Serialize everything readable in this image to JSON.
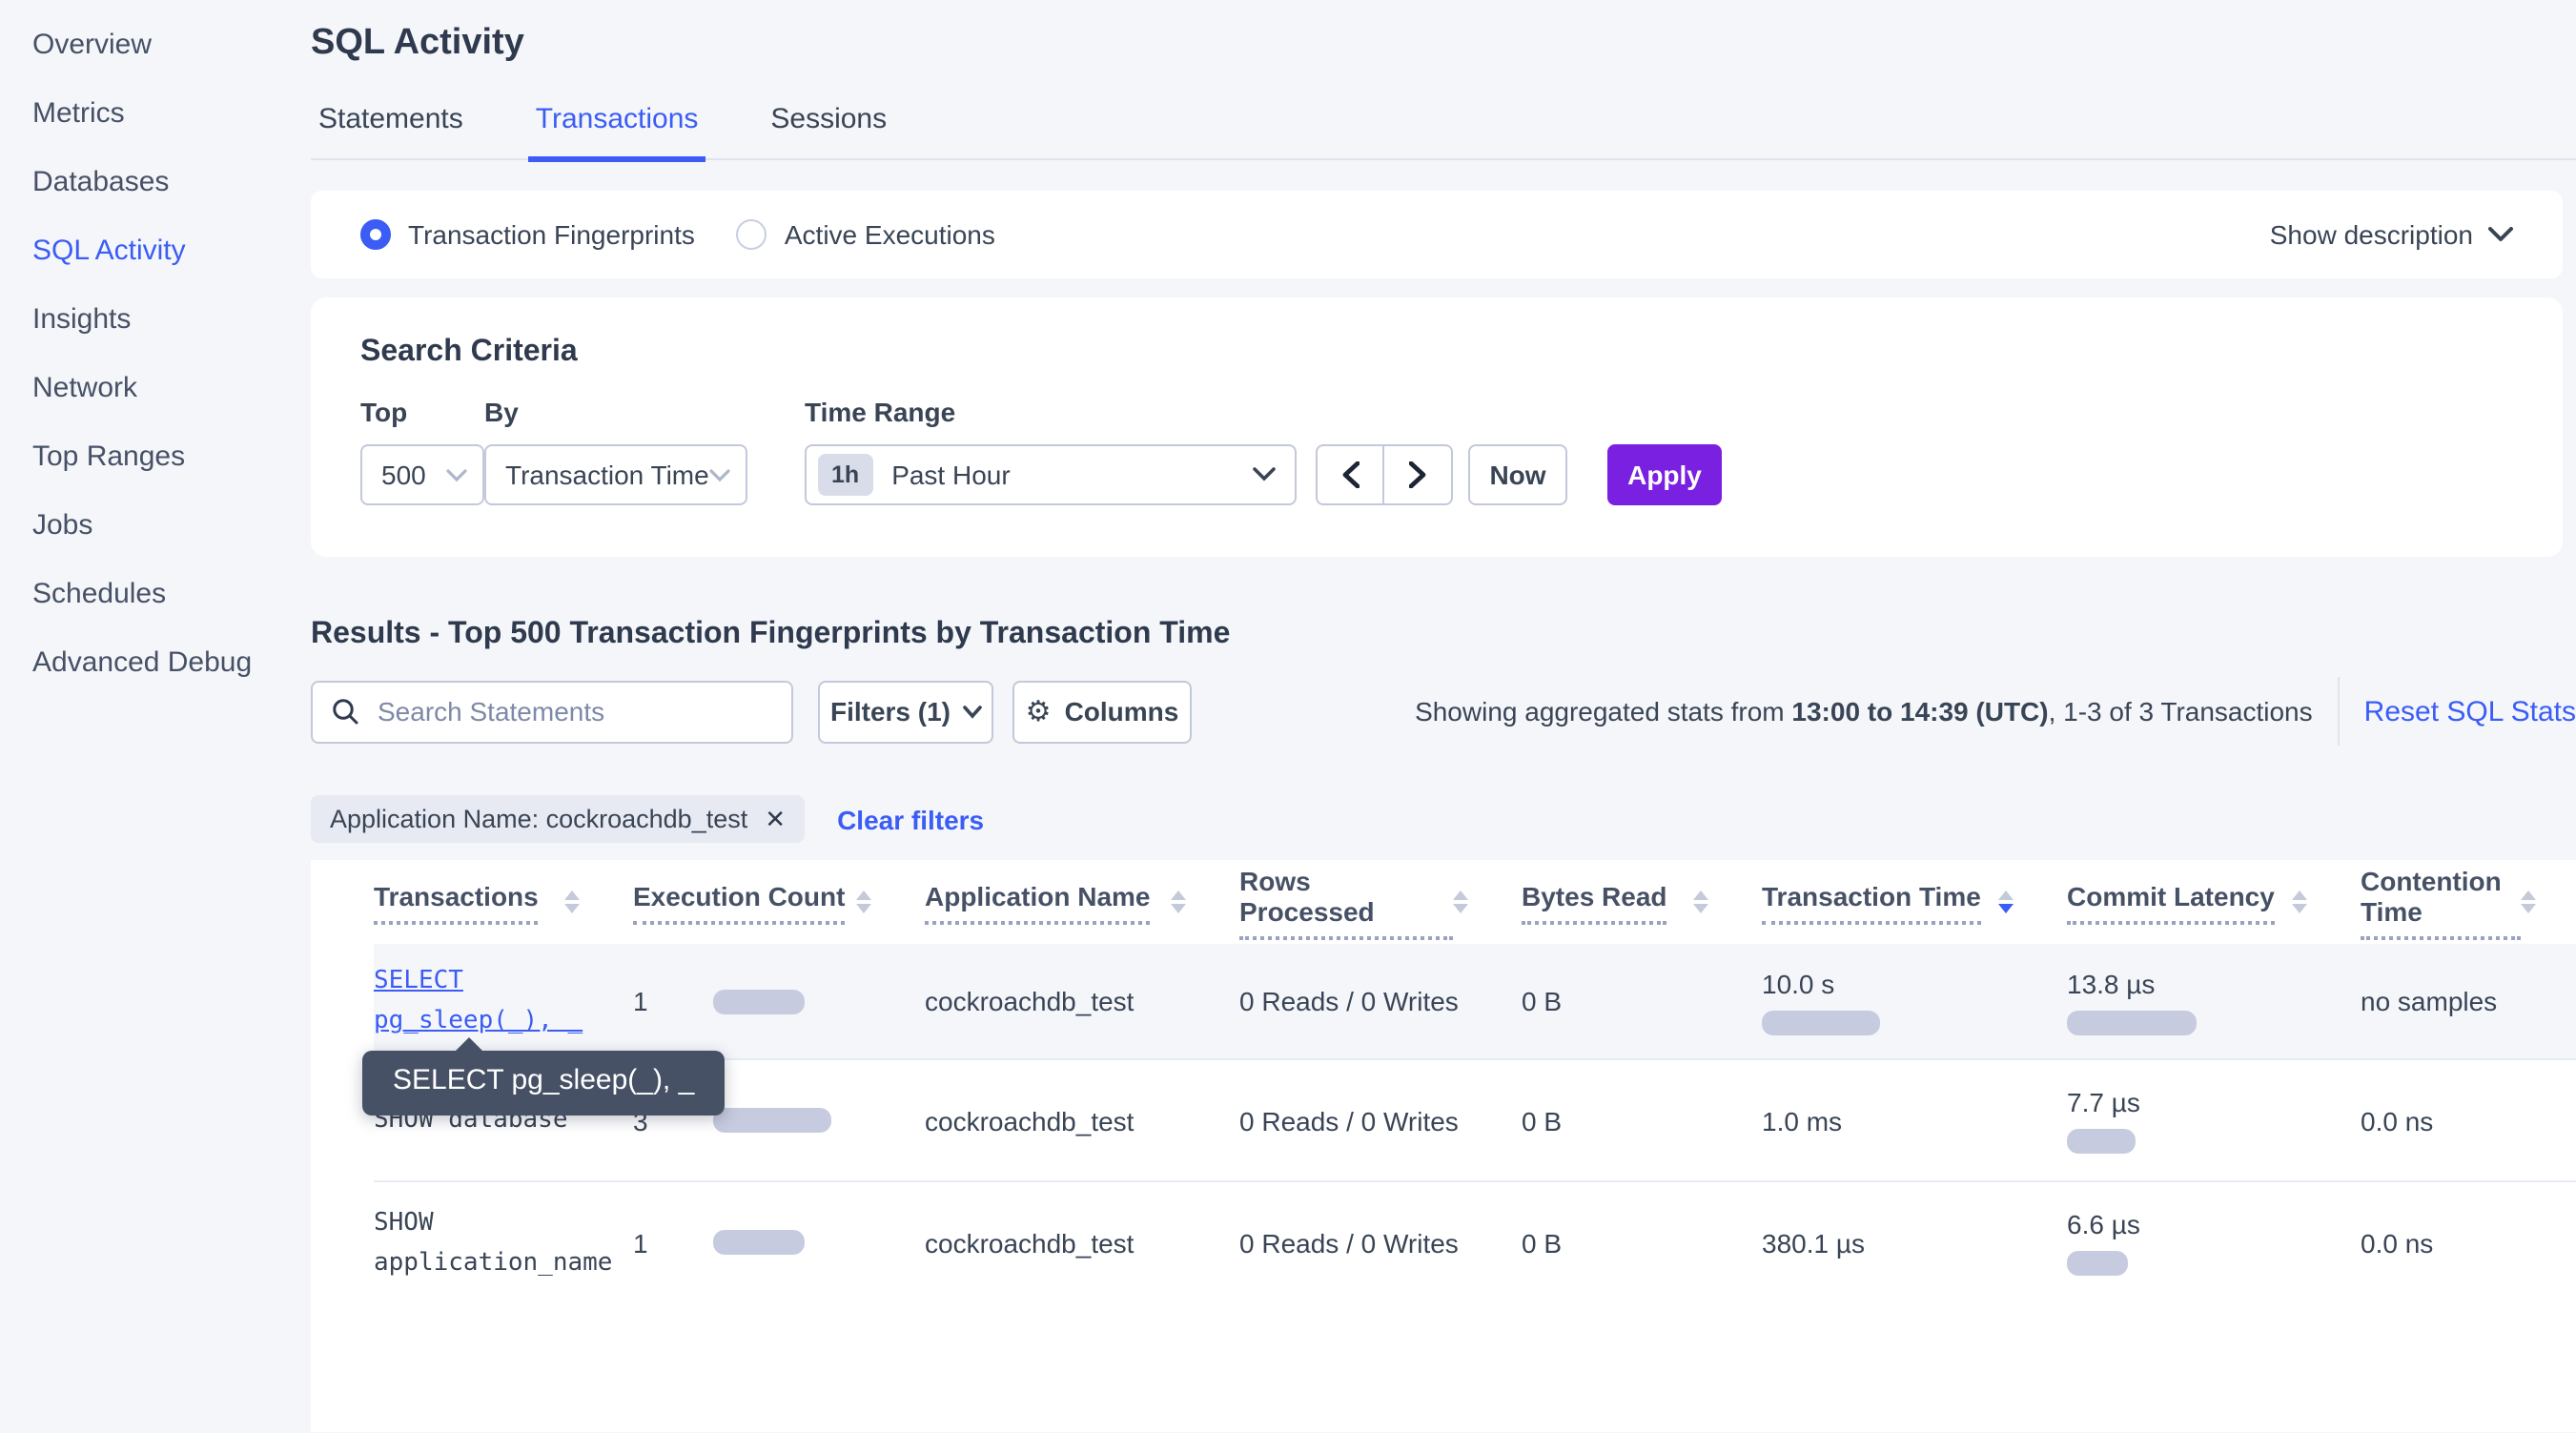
{
  "sidebar": {
    "active_label": "SQL Activity",
    "items": [
      {
        "label": "Overview"
      },
      {
        "label": "Metrics"
      },
      {
        "label": "Databases"
      },
      {
        "label": "SQL Activity"
      },
      {
        "label": "Insights"
      },
      {
        "label": "Network"
      },
      {
        "label": "Top Ranges"
      },
      {
        "label": "Jobs"
      },
      {
        "label": "Schedules"
      },
      {
        "label": "Advanced Debug"
      }
    ]
  },
  "header": {
    "title": "SQL Activity",
    "active_tab_index": 1,
    "tabs": [
      {
        "label": "Statements"
      },
      {
        "label": "Transactions"
      },
      {
        "label": "Sessions"
      }
    ]
  },
  "view_mode": {
    "options": [
      {
        "label": "Transaction Fingerprints",
        "selected": true
      },
      {
        "label": "Active Executions",
        "selected": false
      }
    ],
    "show_description_label": "Show description"
  },
  "search_criteria": {
    "title": "Search Criteria",
    "top": {
      "label": "Top",
      "value": "500"
    },
    "by": {
      "label": "By",
      "value": "Transaction Time"
    },
    "time_range": {
      "label": "Time Range",
      "badge": "1h",
      "value": "Past Hour"
    },
    "now_label": "Now",
    "apply_label": "Apply"
  },
  "results": {
    "heading": "Results - Top 500 Transaction Fingerprints by Transaction Time",
    "search_placeholder": "Search Statements",
    "filters_label": "Filters (1)",
    "columns_label": "Columns",
    "stats_prefix": "Showing aggregated stats from ",
    "stats_range": "13:00 to 14:39 (UTC)",
    "stats_suffix": ", 1-3 of 3 Transactions",
    "reset_label": "Reset SQL Stats",
    "filter_chip": "Application Name: cockroachdb_test",
    "clear_filters_label": "Clear filters"
  },
  "table": {
    "columns": [
      {
        "label": "Transactions",
        "sort": "none"
      },
      {
        "label": "Execution Count",
        "sort": "none"
      },
      {
        "label": "Application Name",
        "sort": "none"
      },
      {
        "label": "Rows Processed",
        "sort": "none"
      },
      {
        "label": "Bytes Read",
        "sort": "none"
      },
      {
        "label": "Transaction Time",
        "sort": "desc"
      },
      {
        "label": "Commit Latency",
        "sort": "none"
      },
      {
        "label": "Contention Time",
        "sort": "none"
      }
    ],
    "rows": [
      {
        "transaction": "SELECT pg_sleep(_), _",
        "transaction_display": "SELECT\npg_sleep(_), _",
        "is_link": true,
        "highlighted": true,
        "execution_count": "1",
        "execution_bar_width": 48,
        "application_name": "cockroachdb_test",
        "rows_processed": "0 Reads / 0 Writes",
        "bytes_read": "0 B",
        "transaction_time": "10.0 s",
        "transaction_time_bar_width": 62,
        "commit_latency": "13.8 µs",
        "commit_latency_bar_width": 68,
        "contention_time": "no samples"
      },
      {
        "transaction": "SHOW database",
        "transaction_display": "SHOW database",
        "is_link": false,
        "highlighted": false,
        "execution_count": "3",
        "execution_bar_width": 62,
        "application_name": "cockroachdb_test",
        "rows_processed": "0 Reads / 0 Writes",
        "bytes_read": "0 B",
        "transaction_time": "1.0 ms",
        "transaction_time_bar_width": 0,
        "commit_latency": "7.7 µs",
        "commit_latency_bar_width": 36,
        "contention_time": "0.0 ns"
      },
      {
        "transaction": "SHOW application_name",
        "transaction_display": "SHOW\napplication_name",
        "is_link": false,
        "highlighted": false,
        "execution_count": "1",
        "execution_bar_width": 48,
        "application_name": "cockroachdb_test",
        "rows_processed": "0 Reads / 0 Writes",
        "bytes_read": "0 B",
        "transaction_time": "380.1 µs",
        "transaction_time_bar_width": 0,
        "commit_latency": "6.6 µs",
        "commit_latency_bar_width": 32,
        "contention_time": "0.0 ns"
      }
    ]
  },
  "tooltip": {
    "text": "SELECT pg_sleep(_), _"
  },
  "colors": {
    "accent_blue": "#3b5cf5",
    "apply_purple": "#7a20e0",
    "page_background": "#f4f6fa",
    "card_background": "#ffffff",
    "text_primary": "#394455",
    "tooltip_background": "#475166",
    "bar_fill": "#c6cbdf",
    "input_border": "#c3c9da"
  }
}
